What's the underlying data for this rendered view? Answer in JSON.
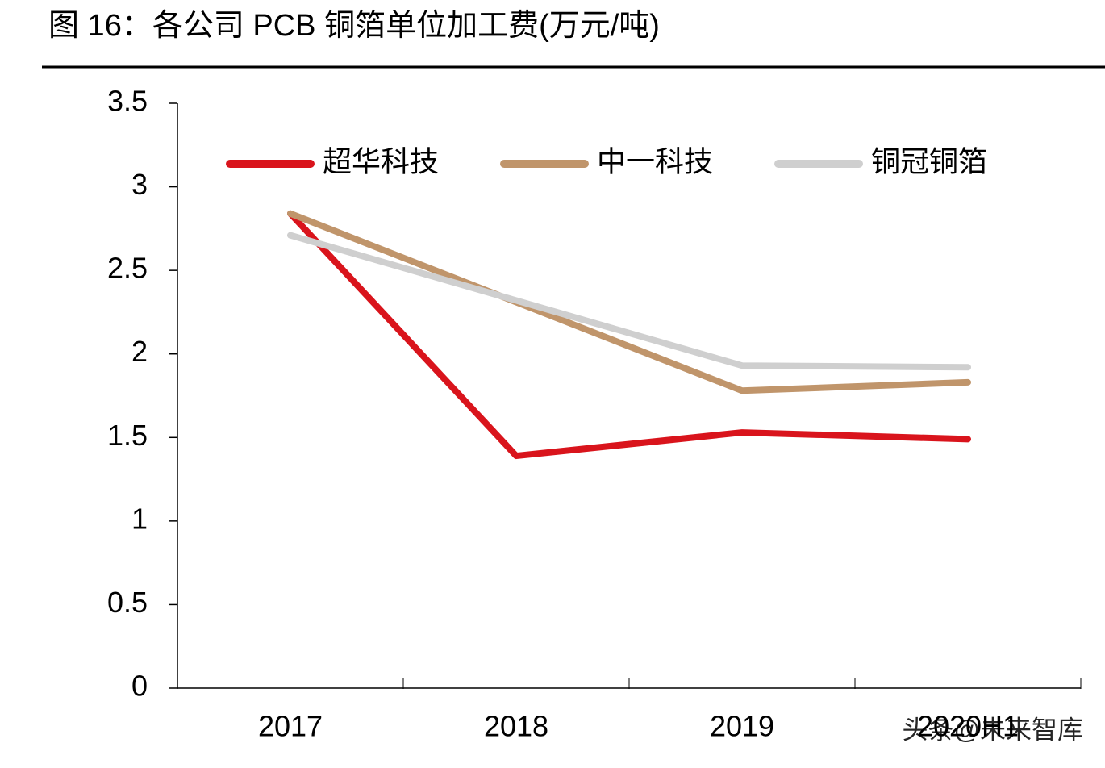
{
  "chart_data": {
    "type": "line",
    "title": "图 16：各公司 PCB 铜箔单位加工费(万元/吨)",
    "categories": [
      "2017",
      "2018",
      "2019",
      "2020H1"
    ],
    "series": [
      {
        "name": "超华科技",
        "color": "#d9141c",
        "values": [
          2.84,
          1.39,
          1.53,
          1.49
        ]
      },
      {
        "name": "中一科技",
        "color": "#c0956b",
        "values": [
          2.84,
          2.31,
          1.78,
          1.83
        ]
      },
      {
        "name": "铜冠铜箔",
        "color": "#cfcfcf",
        "values": [
          2.71,
          2.32,
          1.93,
          1.92
        ]
      }
    ],
    "ylim": [
      0,
      3.5
    ],
    "yticks": [
      0,
      0.5,
      1,
      1.5,
      2,
      2.5,
      3,
      3.5
    ],
    "watermark": "头条@未来智库"
  }
}
